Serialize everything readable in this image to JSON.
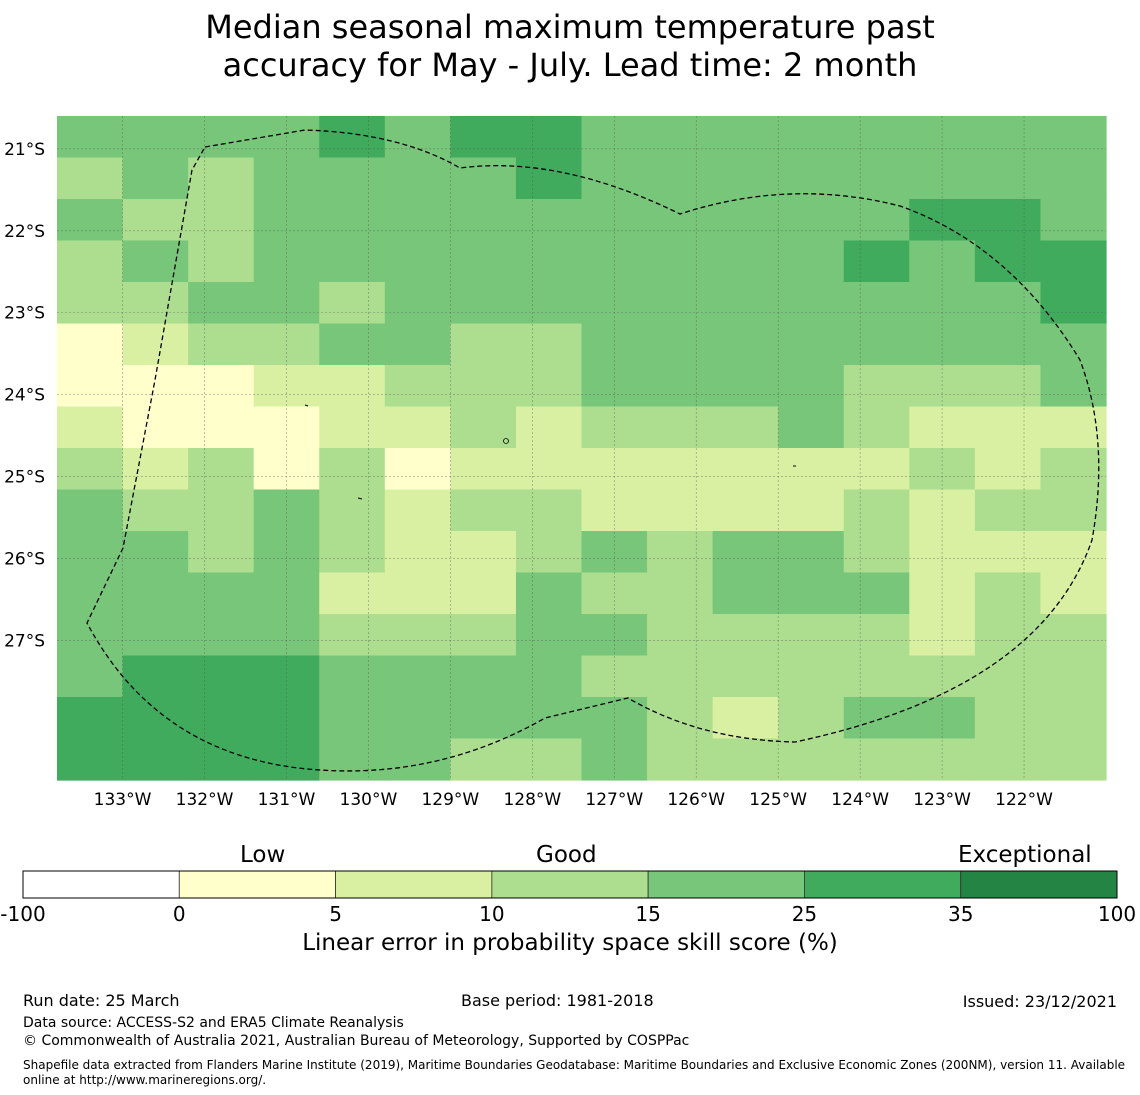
{
  "title": {
    "line1": "Median seasonal maximum temperature past",
    "line2": "accuracy for May - July. Lead time: 2 month"
  },
  "map": {
    "lat_labels": [
      "21°S",
      "22°S",
      "23°S",
      "24°S",
      "25°S",
      "26°S",
      "27°S"
    ],
    "lon_labels": [
      "133°W",
      "132°W",
      "131°W",
      "130°W",
      "129°W",
      "128°W",
      "127°W",
      "126°W",
      "125°W",
      "124°W",
      "123°W",
      "122°W"
    ],
    "lon_range": [
      -133.8,
      -121.0
    ],
    "lat_range": [
      -28.7,
      -20.6
    ],
    "grid": [
      [
        4,
        4,
        4,
        4,
        5,
        4,
        5,
        5,
        4,
        4,
        4,
        4,
        4,
        4,
        4,
        4
      ],
      [
        3,
        4,
        3,
        4,
        4,
        4,
        4,
        5,
        4,
        4,
        4,
        4,
        4,
        4,
        4,
        4
      ],
      [
        4,
        3,
        3,
        4,
        4,
        4,
        4,
        4,
        4,
        4,
        4,
        4,
        4,
        5,
        5,
        4
      ],
      [
        3,
        4,
        3,
        4,
        4,
        4,
        4,
        4,
        4,
        4,
        4,
        4,
        5,
        4,
        5,
        5
      ],
      [
        3,
        3,
        4,
        4,
        3,
        4,
        4,
        4,
        4,
        4,
        4,
        4,
        4,
        4,
        4,
        5
      ],
      [
        1,
        2,
        3,
        3,
        4,
        4,
        3,
        3,
        4,
        4,
        4,
        4,
        4,
        4,
        4,
        4
      ],
      [
        1,
        1,
        1,
        2,
        2,
        3,
        3,
        3,
        4,
        4,
        4,
        4,
        3,
        3,
        3,
        4
      ],
      [
        2,
        1,
        1,
        1,
        2,
        2,
        3,
        2,
        3,
        3,
        3,
        4,
        3,
        2,
        2,
        2
      ],
      [
        3,
        2,
        3,
        1,
        3,
        1,
        2,
        2,
        2,
        2,
        2,
        2,
        2,
        3,
        2,
        3
      ],
      [
        4,
        3,
        3,
        4,
        3,
        2,
        3,
        3,
        2,
        2,
        2,
        2,
        3,
        2,
        3,
        3
      ],
      [
        4,
        4,
        3,
        4,
        3,
        2,
        2,
        3,
        4,
        3,
        4,
        4,
        3,
        2,
        2,
        2
      ],
      [
        4,
        4,
        4,
        4,
        2,
        2,
        2,
        4,
        3,
        3,
        4,
        4,
        4,
        2,
        3,
        2
      ],
      [
        4,
        4,
        4,
        4,
        3,
        3,
        3,
        4,
        4,
        3,
        3,
        3,
        3,
        2,
        3,
        3
      ],
      [
        4,
        5,
        5,
        5,
        4,
        4,
        4,
        4,
        3,
        3,
        3,
        3,
        3,
        3,
        3,
        3
      ],
      [
        5,
        5,
        5,
        5,
        4,
        4,
        4,
        4,
        4,
        3,
        2,
        3,
        4,
        4,
        3,
        3
      ],
      [
        5,
        5,
        5,
        5,
        4,
        4,
        3,
        3,
        4,
        3,
        3,
        3,
        3,
        3,
        3,
        3
      ]
    ]
  },
  "legend": {
    "heads": [
      "Low",
      "Good",
      "Exceptional"
    ],
    "ticks": [
      "-100",
      "0",
      "5",
      "10",
      "15",
      "25",
      "35",
      "100"
    ],
    "colors": [
      "#ffffff",
      "#ffffcc",
      "#d9f0a3",
      "#addd8e",
      "#78c679",
      "#41ab5d",
      "#238443"
    ],
    "title": "Linear error in probability space skill score (%)"
  },
  "footer": {
    "run_date": "Run date: 25 March",
    "base_period": "Base period: 1981-2018",
    "issued": "Issued: 23/12/2021",
    "data_source": "Data source: ACCESS-S2 and ERA5 Climate Reanalysis",
    "copyright": "© Commonwealth of Australia 2021, Australian Bureau of Meteorology, Supported by COSPPac",
    "shapefile": "Shapefile data extracted from Flanders Marine Institute (2019), Maritime Boundaries Geodatabase: Maritime Boundaries and Exclusive Economic Zones (200NM), version 11. Available online at http://www.marineregions.org/."
  }
}
